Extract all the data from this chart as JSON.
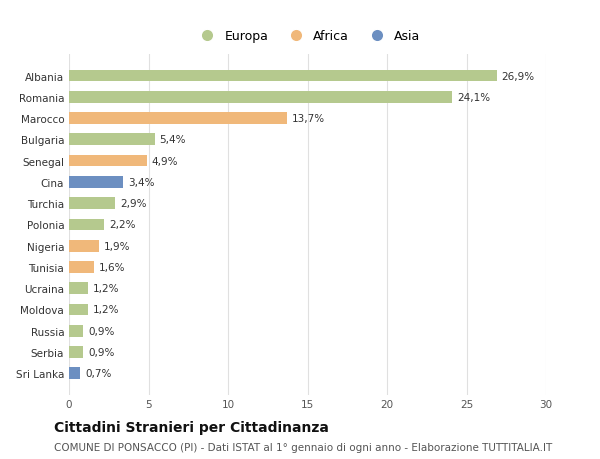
{
  "countries": [
    "Albania",
    "Romania",
    "Marocco",
    "Bulgaria",
    "Senegal",
    "Cina",
    "Turchia",
    "Polonia",
    "Nigeria",
    "Tunisia",
    "Ucraina",
    "Moldova",
    "Russia",
    "Serbia",
    "Sri Lanka"
  ],
  "values": [
    26.9,
    24.1,
    13.7,
    5.4,
    4.9,
    3.4,
    2.9,
    2.2,
    1.9,
    1.6,
    1.2,
    1.2,
    0.9,
    0.9,
    0.7
  ],
  "labels": [
    "26,9%",
    "24,1%",
    "13,7%",
    "5,4%",
    "4,9%",
    "3,4%",
    "2,9%",
    "2,2%",
    "1,9%",
    "1,6%",
    "1,2%",
    "1,2%",
    "0,9%",
    "0,9%",
    "0,7%"
  ],
  "continents": [
    "Europa",
    "Europa",
    "Africa",
    "Europa",
    "Africa",
    "Asia",
    "Europa",
    "Europa",
    "Africa",
    "Africa",
    "Europa",
    "Europa",
    "Europa",
    "Europa",
    "Asia"
  ],
  "colors": {
    "Europa": "#b5c98e",
    "Africa": "#f0b87a",
    "Asia": "#6c8fc1"
  },
  "xlim": [
    0,
    30
  ],
  "xticks": [
    0,
    5,
    10,
    15,
    20,
    25,
    30
  ],
  "title": "Cittadini Stranieri per Cittadinanza",
  "subtitle": "COMUNE DI PONSACCO (PI) - Dati ISTAT al 1° gennaio di ogni anno - Elaborazione TUTTITALIA.IT",
  "background_color": "#ffffff",
  "grid_color": "#e0e0e0",
  "bar_height": 0.55,
  "label_fontsize": 7.5,
  "tick_fontsize": 7.5,
  "title_fontsize": 10,
  "subtitle_fontsize": 7.5,
  "legend_fontsize": 9
}
